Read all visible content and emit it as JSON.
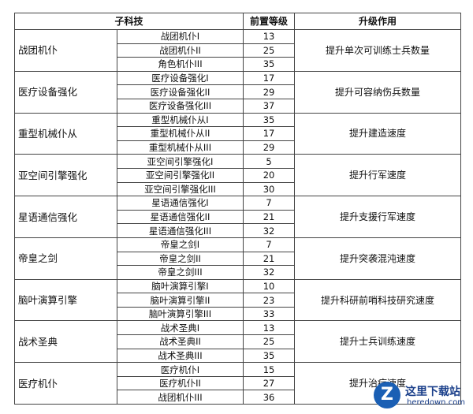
{
  "table": {
    "headers": [
      "子科技",
      "前置等级",
      "升级作用"
    ],
    "groups": [
      {
        "name": "战团机仆",
        "effect": "提升单次可训练士兵数量",
        "items": [
          {
            "name": "战团机仆I",
            "level": 13
          },
          {
            "name": "战团机仆II",
            "level": 25
          },
          {
            "name": "角色机仆III",
            "level": 35
          }
        ]
      },
      {
        "name": "医疗设备强化",
        "effect": "提升可容纳伤兵数量",
        "items": [
          {
            "name": "医疗设备强化I",
            "level": 17
          },
          {
            "name": "医疗设备强化II",
            "level": 29
          },
          {
            "name": "医疗设备强化III",
            "level": 37
          }
        ]
      },
      {
        "name": "重型机械仆从",
        "effect": "提升建造速度",
        "items": [
          {
            "name": "重型机械仆从I",
            "level": 35
          },
          {
            "name": "重型机械仆从II",
            "level": 17
          },
          {
            "name": "重型机械仆从III",
            "level": 29
          }
        ]
      },
      {
        "name": "亚空间引擎强化",
        "effect": "提升行军速度",
        "items": [
          {
            "name": "亚空间引擎强化I",
            "level": 5
          },
          {
            "name": "亚空间引擎强化II",
            "level": 20
          },
          {
            "name": "亚空间引擎强化III",
            "level": 30
          }
        ]
      },
      {
        "name": "星语通信强化",
        "effect": "提升支援行军速度",
        "items": [
          {
            "name": "星语通信强化I",
            "level": 7
          },
          {
            "name": "星语通信强化II",
            "level": 21
          },
          {
            "name": "星语通信强化III",
            "level": 32
          }
        ]
      },
      {
        "name": "帝皇之剑",
        "effect": "提升突袭混沌速度",
        "items": [
          {
            "name": "帝皇之剑I",
            "level": 7
          },
          {
            "name": "帝皇之剑II",
            "level": 21
          },
          {
            "name": "帝皇之剑III",
            "level": 32
          }
        ]
      },
      {
        "name": "脑叶演算引擎",
        "effect": "提升科研前哨科技研究速度",
        "items": [
          {
            "name": "脑叶演算引擎I",
            "level": 10
          },
          {
            "name": "脑叶演算引擎II",
            "level": 23
          },
          {
            "name": "脑叶演算引擎III",
            "level": 33
          }
        ]
      },
      {
        "name": "战术圣典",
        "effect": "提升士兵训练速度",
        "items": [
          {
            "name": "战术圣典I",
            "level": 13
          },
          {
            "name": "战术圣典II",
            "level": 25
          },
          {
            "name": "战术圣典III",
            "level": 35
          }
        ]
      },
      {
        "name": "医疗机仆",
        "effect": "提升治疗速度",
        "items": [
          {
            "name": "医疗机仆I",
            "level": 15
          },
          {
            "name": "医疗机仆II",
            "level": 27
          },
          {
            "name": "战团机仆III",
            "level": 36
          }
        ]
      }
    ]
  },
  "watermark": {
    "logo": "Z",
    "title": "这里下载站",
    "url": "heredown.com"
  }
}
